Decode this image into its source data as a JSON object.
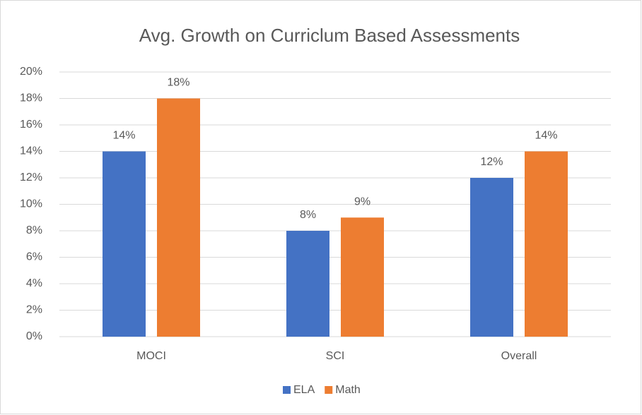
{
  "chart_data": {
    "type": "bar",
    "title": "Avg. Growth on Curriclum Based Assessments",
    "categories": [
      "MOCI",
      "SCI",
      "Overall"
    ],
    "series": [
      {
        "name": "ELA",
        "color": "#4472c4",
        "values": [
          14,
          8,
          12
        ],
        "value_labels": [
          "14%",
          "8%",
          "12%"
        ]
      },
      {
        "name": "Math",
        "color": "#ed7d31",
        "values": [
          18,
          9,
          14
        ],
        "value_labels": [
          "18%",
          "9%",
          "14%"
        ]
      }
    ],
    "ylim": [
      0,
      20
    ],
    "yticks": [
      {
        "value": 0,
        "label": "0%"
      },
      {
        "value": 2,
        "label": "2%"
      },
      {
        "value": 4,
        "label": "4%"
      },
      {
        "value": 6,
        "label": "6%"
      },
      {
        "value": 8,
        "label": "8%"
      },
      {
        "value": 10,
        "label": "10%"
      },
      {
        "value": 12,
        "label": "12%"
      },
      {
        "value": 14,
        "label": "14%"
      },
      {
        "value": 16,
        "label": "16%"
      },
      {
        "value": 18,
        "label": "18%"
      },
      {
        "value": 20,
        "label": "20%"
      }
    ],
    "grid": true,
    "legend": "bottom"
  }
}
